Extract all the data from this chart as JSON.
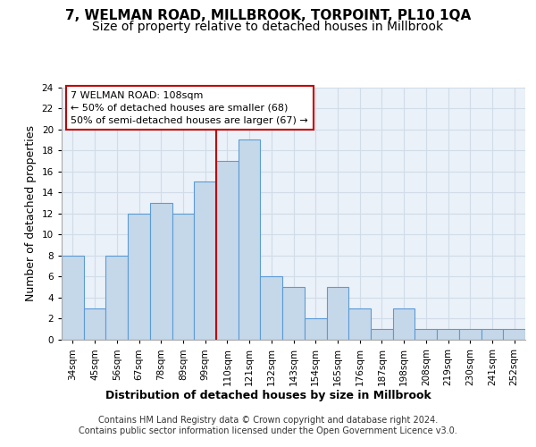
{
  "title": "7, WELMAN ROAD, MILLBROOK, TORPOINT, PL10 1QA",
  "subtitle": "Size of property relative to detached houses in Millbrook",
  "xlabel": "Distribution of detached houses by size in Millbrook",
  "ylabel": "Number of detached properties",
  "categories": [
    "34sqm",
    "45sqm",
    "56sqm",
    "67sqm",
    "78sqm",
    "89sqm",
    "99sqm",
    "110sqm",
    "121sqm",
    "132sqm",
    "143sqm",
    "154sqm",
    "165sqm",
    "176sqm",
    "187sqm",
    "198sqm",
    "208sqm",
    "219sqm",
    "230sqm",
    "241sqm",
    "252sqm"
  ],
  "values": [
    8,
    3,
    8,
    12,
    13,
    12,
    15,
    17,
    19,
    6,
    5,
    2,
    5,
    3,
    1,
    3,
    1,
    1,
    1,
    1,
    1
  ],
  "bar_color": "#c5d8ea",
  "bar_edge_color": "#5b9bd5",
  "vline_index": 7,
  "vline_color": "#c00000",
  "annotation_text": "7 WELMAN ROAD: 108sqm\n← 50% of detached houses are smaller (68)\n50% of semi-detached houses are larger (67) →",
  "annotation_box_color": "#ffffff",
  "annotation_box_edge_color": "#c00000",
  "ylim": [
    0,
    24
  ],
  "yticks": [
    0,
    2,
    4,
    6,
    8,
    10,
    12,
    14,
    16,
    18,
    20,
    22,
    24
  ],
  "grid_color": "#d0dce8",
  "background_color": "#eaf1f8",
  "footer": "Contains HM Land Registry data © Crown copyright and database right 2024.\nContains public sector information licensed under the Open Government Licence v3.0.",
  "title_fontsize": 11,
  "subtitle_fontsize": 10,
  "axis_label_fontsize": 9,
  "tick_fontsize": 7.5,
  "footer_fontsize": 7,
  "annotation_fontsize": 8
}
